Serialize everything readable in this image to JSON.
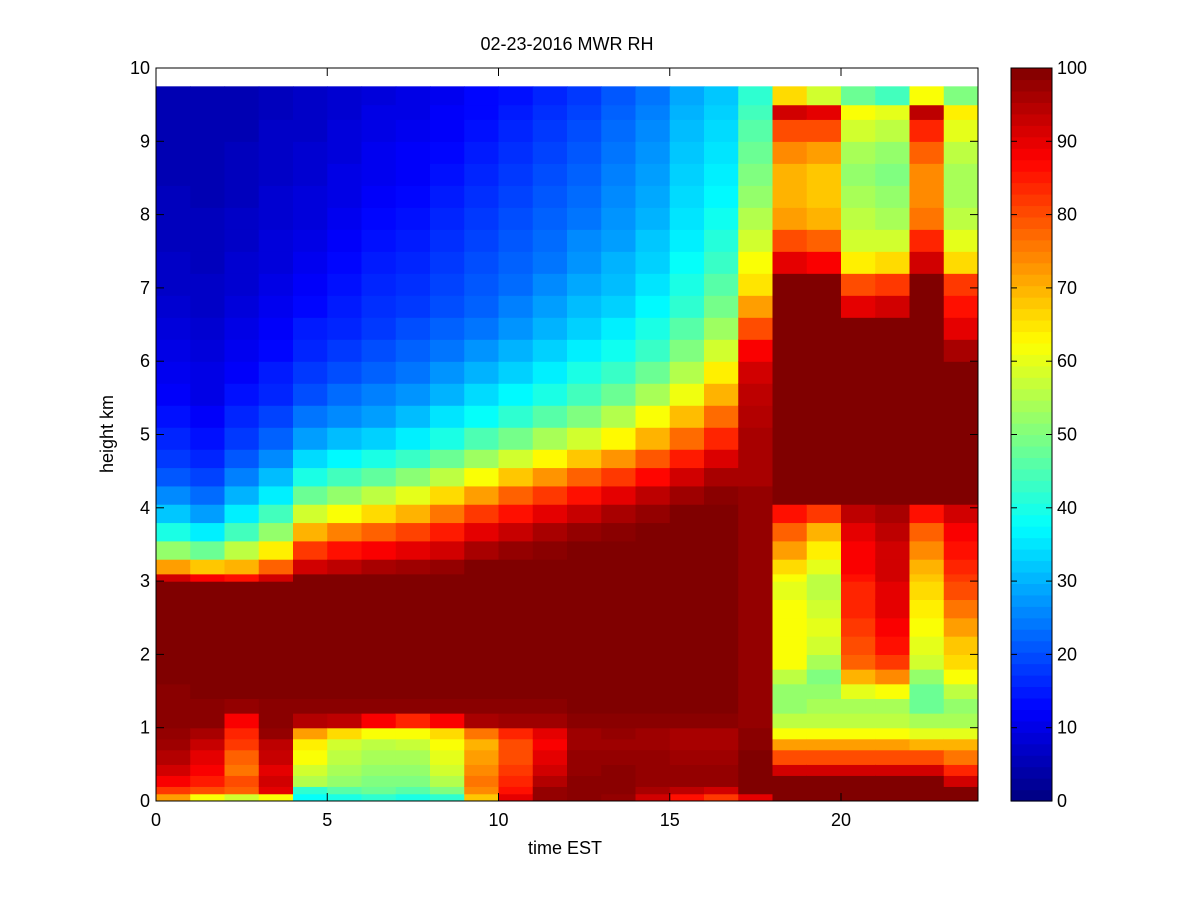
{
  "chart_data": {
    "type": "heatmap",
    "title": "02-23-2016 MWR RH",
    "xlabel": "time EST",
    "ylabel": "height km",
    "xlim": [
      0,
      24
    ],
    "ylim": [
      0,
      10
    ],
    "x_ticks": [
      "0",
      "5",
      "10",
      "15",
      "20"
    ],
    "y_ticks": [
      "0",
      "1",
      "2",
      "3",
      "4",
      "5",
      "6",
      "7",
      "8",
      "9",
      "10"
    ],
    "colorbar": {
      "colormap": "jet",
      "range": [
        0,
        100
      ],
      "ticks": [
        "0",
        "10",
        "20",
        "30",
        "40",
        "50",
        "60",
        "70",
        "80",
        "90",
        "100"
      ]
    },
    "grid": false,
    "x_bin_centers_hours": [
      0,
      1,
      2,
      3,
      4,
      5,
      6,
      7,
      8,
      9,
      10,
      11,
      12,
      13,
      14,
      15,
      16,
      17,
      18,
      19,
      20,
      21,
      22,
      23
    ],
    "y_bin_edges_km": [
      0,
      0.1,
      0.2,
      0.35,
      0.5,
      0.7,
      0.85,
      1.0,
      1.2,
      1.4,
      1.6,
      1.8,
      2.0,
      2.25,
      2.5,
      2.75,
      3.0,
      3.1,
      3.3,
      3.55,
      3.8,
      4.05,
      4.3,
      4.55,
      4.8,
      5.1,
      5.4,
      5.7,
      6.0,
      6.3,
      6.6,
      6.9,
      7.2,
      7.5,
      7.8,
      8.1,
      8.4,
      8.7,
      9.0,
      9.3,
      9.5,
      9.75
    ],
    "rh_columns_percent": [
      {
        "hour": 0,
        "rh": [
          72,
          82,
          88,
          92,
          95,
          97,
          98,
          99,
          99,
          99,
          100,
          100,
          100,
          100,
          100,
          100,
          92,
          72,
          52,
          40,
          32,
          26,
          21,
          18,
          16,
          14,
          12,
          11,
          10,
          9,
          8,
          7,
          7,
          6,
          6,
          6,
          5,
          5,
          5,
          5,
          5
        ]
      },
      {
        "hour": 1,
        "rh": [
          62,
          80,
          85,
          88,
          90,
          93,
          96,
          99,
          99,
          100,
          100,
          100,
          100,
          100,
          100,
          100,
          88,
          68,
          48,
          36,
          28,
          23,
          19,
          16,
          14,
          12,
          10,
          10,
          9,
          8,
          7,
          7,
          6,
          6,
          6,
          5,
          5,
          5,
          5,
          5,
          5
        ]
      },
      {
        "hour": 2,
        "rh": [
          58,
          78,
          80,
          76,
          78,
          82,
          84,
          88,
          98,
          100,
          100,
          100,
          100,
          100,
          100,
          100,
          86,
          70,
          56,
          44,
          36,
          30,
          25,
          21,
          18,
          16,
          14,
          12,
          11,
          10,
          9,
          8,
          8,
          7,
          7,
          6,
          6,
          6,
          5,
          5,
          5
        ]
      },
      {
        "hour": 3,
        "rh": [
          62,
          90,
          92,
          90,
          93,
          94,
          98,
          99,
          99,
          100,
          100,
          100,
          100,
          100,
          100,
          100,
          92,
          78,
          64,
          52,
          44,
          36,
          31,
          26,
          22,
          19,
          16,
          15,
          13,
          12,
          11,
          10,
          9,
          9,
          8,
          8,
          7,
          7,
          7,
          6,
          6
        ]
      },
      {
        "hour": 4,
        "rh": [
          38,
          42,
          55,
          58,
          62,
          64,
          72,
          95,
          99,
          100,
          100,
          100,
          100,
          100,
          100,
          100,
          100,
          92,
          82,
          70,
          58,
          48,
          40,
          34,
          28,
          24,
          20,
          18,
          16,
          15,
          13,
          12,
          11,
          10,
          9,
          9,
          8,
          8,
          7,
          7,
          7
        ]
      },
      {
        "hour": 5,
        "rh": [
          40,
          46,
          52,
          54,
          56,
          58,
          66,
          94,
          99,
          100,
          100,
          100,
          100,
          100,
          100,
          100,
          100,
          94,
          86,
          75,
          62,
          52,
          44,
          37,
          31,
          26,
          23,
          20,
          18,
          16,
          15,
          14,
          13,
          12,
          11,
          10,
          10,
          9,
          9,
          8,
          8
        ]
      },
      {
        "hour": 6,
        "rh": [
          42,
          48,
          50,
          52,
          54,
          56,
          62,
          88,
          99,
          100,
          100,
          100,
          100,
          100,
          100,
          100,
          100,
          96,
          88,
          78,
          66,
          56,
          47,
          40,
          33,
          28,
          25,
          22,
          20,
          18,
          17,
          16,
          15,
          14,
          13,
          12,
          11,
          11,
          10,
          10,
          9
        ]
      },
      {
        "hour": 7,
        "rh": [
          40,
          46,
          50,
          52,
          54,
          57,
          62,
          84,
          99,
          100,
          100,
          100,
          100,
          100,
          100,
          100,
          100,
          97,
          90,
          81,
          70,
          60,
          51,
          43,
          36,
          31,
          27,
          24,
          22,
          20,
          18,
          17,
          16,
          15,
          14,
          13,
          12,
          12,
          11,
          10,
          10
        ]
      },
      {
        "hour": 8,
        "rh": [
          42,
          50,
          55,
          58,
          60,
          62,
          66,
          88,
          99,
          100,
          100,
          100,
          100,
          100,
          100,
          100,
          100,
          98,
          92,
          85,
          76,
          66,
          56,
          48,
          40,
          35,
          30,
          27,
          24,
          22,
          20,
          19,
          18,
          17,
          16,
          15,
          14,
          13,
          12,
          12,
          11
        ]
      },
      {
        "hour": 9,
        "rh": [
          68,
          74,
          76,
          74,
          72,
          70,
          76,
          96,
          99,
          100,
          100,
          100,
          100,
          100,
          100,
          100,
          100,
          100,
          96,
          90,
          82,
          72,
          62,
          53,
          45,
          38,
          34,
          30,
          27,
          24,
          22,
          21,
          20,
          19,
          18,
          17,
          16,
          15,
          14,
          13,
          13
        ]
      },
      {
        "hour": 10,
        "rh": [
          90,
          86,
          84,
          82,
          80,
          80,
          84,
          97,
          99,
          100,
          100,
          100,
          100,
          100,
          100,
          100,
          100,
          100,
          98,
          93,
          86,
          78,
          68,
          58,
          49,
          42,
          37,
          33,
          30,
          27,
          25,
          23,
          22,
          21,
          20,
          19,
          18,
          17,
          16,
          15,
          14
        ]
      },
      {
        "hour": 11,
        "rh": [
          98,
          98,
          95,
          92,
          90,
          88,
          90,
          97,
          99,
          100,
          100,
          100,
          100,
          100,
          100,
          100,
          100,
          100,
          99,
          96,
          90,
          82,
          73,
          63,
          54,
          46,
          40,
          36,
          33,
          30,
          28,
          26,
          24,
          23,
          22,
          21,
          20,
          19,
          18,
          17,
          16
        ]
      },
      {
        "hour": 12,
        "rh": [
          99,
          99,
          99,
          98,
          98,
          97,
          97,
          99,
          100,
          100,
          100,
          100,
          100,
          100,
          100,
          100,
          100,
          100,
          100,
          98,
          93,
          86,
          78,
          68,
          58,
          50,
          44,
          40,
          36,
          33,
          31,
          29,
          27,
          26,
          24,
          23,
          22,
          21,
          20,
          19,
          18
        ]
      },
      {
        "hour": 13,
        "rh": [
          98,
          99,
          99,
          99,
          98,
          97,
          98,
          99,
          100,
          100,
          100,
          100,
          100,
          100,
          100,
          100,
          100,
          100,
          100,
          99,
          96,
          90,
          82,
          73,
          63,
          55,
          48,
          43,
          39,
          36,
          33,
          31,
          30,
          28,
          27,
          26,
          25,
          24,
          23,
          22,
          21
        ]
      },
      {
        "hour": 14,
        "rh": [
          92,
          96,
          98,
          98,
          98,
          97,
          97,
          99,
          100,
          100,
          100,
          100,
          100,
          100,
          100,
          100,
          100,
          100,
          100,
          100,
          98,
          94,
          87,
          79,
          70,
          62,
          54,
          48,
          43,
          40,
          37,
          35,
          33,
          32,
          30,
          29,
          28,
          27,
          26,
          25,
          24
        ]
      },
      {
        "hour": 15,
        "rh": [
          86,
          94,
          98,
          98,
          97,
          96,
          96,
          99,
          100,
          100,
          100,
          100,
          100,
          100,
          100,
          100,
          100,
          100,
          100,
          100,
          100,
          97,
          92,
          85,
          77,
          69,
          61,
          55,
          50,
          46,
          42,
          40,
          38,
          36,
          35,
          34,
          33,
          32,
          31,
          30,
          29
        ]
      },
      {
        "hour": 16,
        "rh": [
          82,
          92,
          98,
          98,
          97,
          96,
          96,
          99,
          100,
          100,
          100,
          100,
          100,
          100,
          100,
          100,
          100,
          100,
          100,
          100,
          100,
          99,
          96,
          91,
          84,
          77,
          70,
          64,
          58,
          53,
          49,
          46,
          43,
          41,
          39,
          37,
          36,
          35,
          34,
          33,
          32
        ]
      },
      {
        "hour": 17,
        "rh": [
          90,
          100,
          100,
          100,
          100,
          99,
          99,
          98,
          98,
          98,
          98,
          98,
          98,
          98,
          98,
          98,
          98,
          98,
          98,
          98,
          98,
          98,
          96,
          96,
          96,
          95,
          94,
          92,
          88,
          80,
          72,
          65,
          62,
          58,
          55,
          52,
          50,
          48,
          46,
          44,
          42
        ]
      },
      {
        "hour": 18,
        "rh": [
          100,
          100,
          100,
          92,
          80,
          72,
          62,
          56,
          52,
          52,
          56,
          62,
          62,
          62,
          62,
          60,
          62,
          66,
          72,
          78,
          86,
          100,
          100,
          100,
          100,
          100,
          100,
          100,
          100,
          100,
          100,
          100,
          90,
          80,
          72,
          70,
          70,
          74,
          80,
          92,
          66
        ]
      },
      {
        "hour": 19,
        "rh": [
          100,
          100,
          100,
          92,
          80,
          72,
          62,
          56,
          54,
          52,
          50,
          54,
          58,
          60,
          58,
          56,
          56,
          60,
          64,
          70,
          82,
          100,
          100,
          100,
          100,
          100,
          100,
          100,
          100,
          100,
          100,
          100,
          88,
          78,
          70,
          68,
          68,
          72,
          80,
          90,
          58
        ]
      },
      {
        "hour": 20,
        "rh": [
          100,
          100,
          100,
          92,
          80,
          72,
          62,
          56,
          54,
          60,
          70,
          78,
          80,
          82,
          84,
          84,
          86,
          88,
          88,
          90,
          94,
          100,
          100,
          100,
          100,
          100,
          100,
          100,
          100,
          100,
          90,
          80,
          64,
          58,
          56,
          54,
          52,
          54,
          58,
          62,
          48
        ]
      },
      {
        "hour": 21,
        "rh": [
          100,
          100,
          100,
          92,
          80,
          72,
          62,
          56,
          54,
          62,
          74,
          82,
          86,
          88,
          90,
          90,
          92,
          92,
          92,
          94,
          96,
          100,
          100,
          100,
          100,
          100,
          100,
          100,
          100,
          100,
          92,
          82,
          66,
          58,
          54,
          52,
          50,
          52,
          56,
          60,
          44
        ]
      },
      {
        "hour": 22,
        "rh": [
          100,
          100,
          100,
          92,
          80,
          70,
          60,
          54,
          48,
          48,
          52,
          58,
          60,
          62,
          64,
          66,
          68,
          70,
          74,
          78,
          86,
          100,
          100,
          100,
          100,
          100,
          100,
          100,
          100,
          100,
          100,
          100,
          92,
          84,
          76,
          74,
          74,
          78,
          84,
          94,
          62
        ]
      },
      {
        "hour": 23,
        "rh": [
          100,
          100,
          92,
          84,
          76,
          70,
          60,
          54,
          52,
          56,
          62,
          66,
          68,
          72,
          76,
          80,
          82,
          84,
          86,
          88,
          92,
          100,
          100,
          100,
          100,
          100,
          100,
          100,
          96,
          90,
          86,
          82,
          66,
          60,
          56,
          54,
          54,
          56,
          60,
          64,
          50
        ]
      }
    ]
  }
}
